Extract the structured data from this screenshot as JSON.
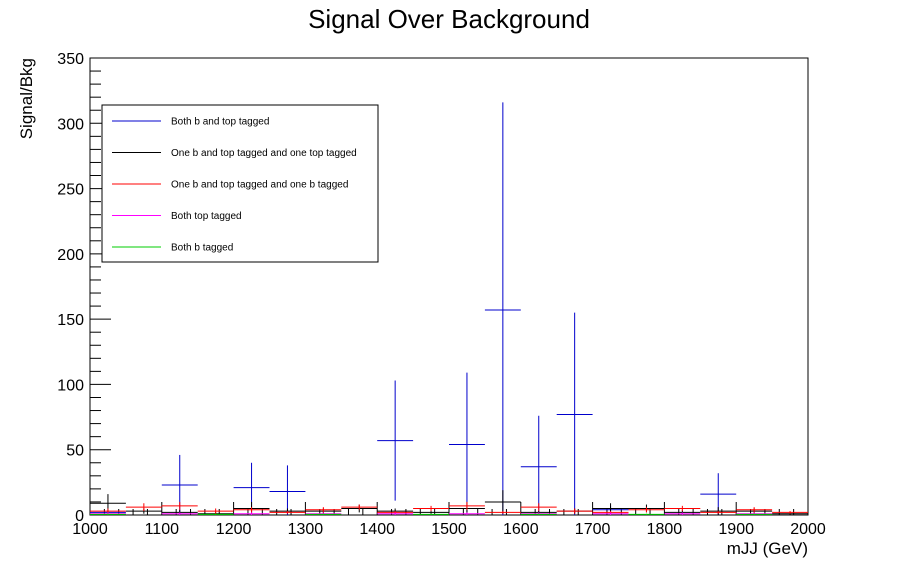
{
  "chart_data": {
    "type": "errorbar-histogram",
    "title": "Signal Over Background",
    "xlabel": "mJJ (GeV)",
    "ylabel": "Signal/Bkg",
    "xlim": [
      1000,
      2000
    ],
    "ylim": [
      0,
      350
    ],
    "bin_width": 50,
    "x_ticks": [
      1000,
      1100,
      1200,
      1300,
      1400,
      1500,
      1600,
      1700,
      1800,
      1900,
      2000
    ],
    "y_ticks": [
      0,
      50,
      100,
      150,
      200,
      250,
      300,
      350
    ],
    "legend": {
      "placement": "top-left"
    },
    "series": [
      {
        "name": "Both b and top tagged",
        "color": "#0000cc",
        "points": [
          {
            "x": 1025,
            "y": 2,
            "err": 2
          },
          {
            "x": 1125,
            "y": 23,
            "err": 23
          },
          {
            "x": 1225,
            "y": 21,
            "err": 19
          },
          {
            "x": 1275,
            "y": 18,
            "err": 20
          },
          {
            "x": 1425,
            "y": 57,
            "err": 46
          },
          {
            "x": 1525,
            "y": 54,
            "err": 55
          },
          {
            "x": 1575,
            "y": 157,
            "err": 159
          },
          {
            "x": 1625,
            "y": 37,
            "err": 39
          },
          {
            "x": 1675,
            "y": 77,
            "err": 78
          },
          {
            "x": 1725,
            "y": 4,
            "err": 3
          },
          {
            "x": 1875,
            "y": 16,
            "err": 16
          }
        ]
      },
      {
        "name": "One b and top tagged and one top tagged",
        "color": "#000000",
        "points": [
          {
            "x": 1025,
            "y": 9,
            "err": 7
          },
          {
            "x": 1075,
            "y": 3,
            "err": 2
          },
          {
            "x": 1125,
            "y": 2,
            "err": 2
          },
          {
            "x": 1175,
            "y": 1,
            "err": 1
          },
          {
            "x": 1225,
            "y": 5,
            "err": 5
          },
          {
            "x": 1275,
            "y": 3,
            "err": 2
          },
          {
            "x": 1325,
            "y": 3,
            "err": 2
          },
          {
            "x": 1375,
            "y": 5,
            "err": 3
          },
          {
            "x": 1425,
            "y": 3,
            "err": 2
          },
          {
            "x": 1475,
            "y": 2,
            "err": 1
          },
          {
            "x": 1525,
            "y": 5,
            "err": 5
          },
          {
            "x": 1575,
            "y": 10,
            "err": 9
          },
          {
            "x": 1625,
            "y": 2,
            "err": 1
          },
          {
            "x": 1675,
            "y": 3,
            "err": 2
          },
          {
            "x": 1725,
            "y": 5,
            "err": 4
          },
          {
            "x": 1775,
            "y": 5,
            "err": 3
          },
          {
            "x": 1825,
            "y": 2,
            "err": 2
          },
          {
            "x": 1875,
            "y": 3,
            "err": 3
          },
          {
            "x": 1925,
            "y": 3,
            "err": 2
          },
          {
            "x": 1975,
            "y": 1,
            "err": 1
          }
        ]
      },
      {
        "name": "One b and top tagged and one b tagged",
        "color": "#ff0000",
        "points": [
          {
            "x": 1025,
            "y": 3,
            "err": 2
          },
          {
            "x": 1075,
            "y": 6,
            "err": 3
          },
          {
            "x": 1125,
            "y": 7,
            "err": 3
          },
          {
            "x": 1175,
            "y": 3,
            "err": 2
          },
          {
            "x": 1225,
            "y": 4,
            "err": 2
          },
          {
            "x": 1275,
            "y": 2,
            "err": 1
          },
          {
            "x": 1325,
            "y": 4,
            "err": 2
          },
          {
            "x": 1375,
            "y": 6,
            "err": 2
          },
          {
            "x": 1425,
            "y": 2,
            "err": 1
          },
          {
            "x": 1475,
            "y": 5,
            "err": 2
          },
          {
            "x": 1525,
            "y": 7,
            "err": 3
          },
          {
            "x": 1575,
            "y": 2,
            "err": 1
          },
          {
            "x": 1625,
            "y": 6,
            "err": 3
          },
          {
            "x": 1675,
            "y": 3,
            "err": 2
          },
          {
            "x": 1725,
            "y": 2,
            "err": 1
          },
          {
            "x": 1775,
            "y": 4,
            "err": 2
          },
          {
            "x": 1825,
            "y": 5,
            "err": 2
          },
          {
            "x": 1875,
            "y": 2,
            "err": 1
          },
          {
            "x": 1925,
            "y": 4,
            "err": 2
          },
          {
            "x": 1975,
            "y": 2,
            "err": 1
          }
        ]
      },
      {
        "name": "Both top tagged",
        "color": "#ff00ff",
        "points": [
          {
            "x": 1025,
            "y": 1,
            "err": 1
          },
          {
            "x": 1125,
            "y": 1,
            "err": 1
          },
          {
            "x": 1225,
            "y": 1,
            "err": 1
          },
          {
            "x": 1325,
            "y": 1,
            "err": 1
          },
          {
            "x": 1425,
            "y": 1,
            "err": 1
          },
          {
            "x": 1525,
            "y": 1,
            "err": 1
          },
          {
            "x": 1625,
            "y": 1,
            "err": 1
          },
          {
            "x": 1725,
            "y": 1,
            "err": 1
          },
          {
            "x": 1825,
            "y": 1,
            "err": 1
          },
          {
            "x": 1925,
            "y": 1,
            "err": 1
          }
        ]
      },
      {
        "name": "Both b tagged",
        "color": "#00cc00",
        "points": [
          {
            "x": 1025,
            "y": 0.5,
            "err": 0.5
          },
          {
            "x": 1175,
            "y": 0.5,
            "err": 0.5
          },
          {
            "x": 1325,
            "y": 0.5,
            "err": 0.5
          },
          {
            "x": 1475,
            "y": 0.5,
            "err": 0.5
          },
          {
            "x": 1625,
            "y": 0.5,
            "err": 0.5
          },
          {
            "x": 1775,
            "y": 0.5,
            "err": 0.5
          },
          {
            "x": 1925,
            "y": 0.5,
            "err": 0.5
          }
        ]
      }
    ]
  }
}
